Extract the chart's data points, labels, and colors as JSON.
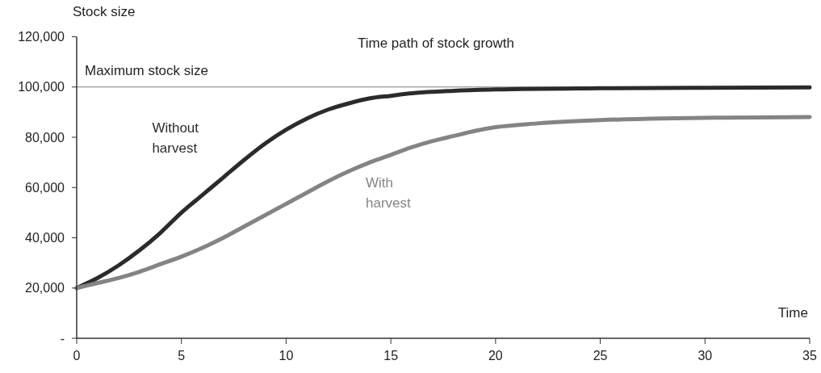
{
  "chart_data": {
    "type": "line",
    "title": "Time path of stock growth",
    "xlabel": "Time",
    "ylabel": "Stock size",
    "xlim": [
      0,
      35
    ],
    "xticks": [
      0,
      5,
      10,
      15,
      20,
      25,
      30,
      35
    ],
    "ylim": [
      0,
      120000
    ],
    "yticks": [
      {
        "value": 0,
        "label": "-"
      },
      {
        "value": 20000,
        "label": "20,000"
      },
      {
        "value": 40000,
        "label": "40,000"
      },
      {
        "value": 60000,
        "label": "60,000"
      },
      {
        "value": 80000,
        "label": "80,000"
      },
      {
        "value": 100000,
        "label": "100,000"
      },
      {
        "value": 120000,
        "label": "120,000"
      }
    ],
    "grid": false,
    "marker": "none",
    "line_style": "solid",
    "ref_lines": [
      {
        "axis": "y",
        "value": 100000,
        "label": "Maximum stock size",
        "color": "#808080"
      }
    ],
    "series": [
      {
        "name": "Without harvest",
        "color": "#2b2b2b",
        "x": [
          0,
          1,
          2,
          3,
          4,
          5,
          6,
          7,
          8,
          9,
          10,
          11,
          12,
          13,
          14,
          15,
          16,
          18,
          20,
          25,
          30,
          35
        ],
        "values": [
          20000,
          24000,
          29000,
          35000,
          42000,
          50000,
          57000,
          64000,
          71000,
          77500,
          83000,
          87500,
          91000,
          93500,
          95500,
          96500,
          97500,
          98500,
          99000,
          99500,
          99700,
          99800
        ]
      },
      {
        "name": "With harvest",
        "color": "#848484",
        "x": [
          0,
          1,
          2,
          3,
          4,
          5,
          6,
          7,
          8,
          9,
          10,
          11,
          12,
          13,
          14,
          15,
          16,
          17,
          18,
          19,
          20,
          22,
          25,
          28,
          31,
          35
        ],
        "values": [
          20000,
          22000,
          24000,
          26500,
          29500,
          32500,
          36000,
          40000,
          44500,
          49000,
          53500,
          58000,
          62500,
          66500,
          70000,
          73000,
          76000,
          78500,
          80500,
          82500,
          84000,
          85500,
          86800,
          87500,
          87800,
          88000
        ]
      }
    ]
  }
}
